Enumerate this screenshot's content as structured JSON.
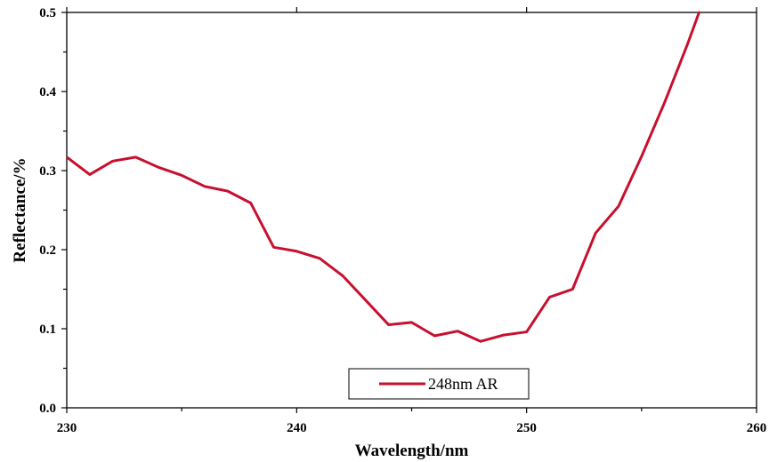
{
  "chart_data": {
    "type": "line",
    "xlabel": "Wavelength/nm",
    "ylabel": "Reflectance/%",
    "xlim": [
      230,
      260
    ],
    "ylim": [
      0.0,
      0.5
    ],
    "x_ticks": [
      230,
      240,
      250,
      260
    ],
    "x_tick_labels": [
      "230",
      "240",
      "250",
      "260"
    ],
    "x_minor_ticks": [
      235,
      245,
      255
    ],
    "y_ticks": [
      0.0,
      0.1,
      0.2,
      0.3,
      0.4,
      0.5
    ],
    "y_tick_labels": [
      "0.0",
      "0.1",
      "0.2",
      "0.3",
      "0.4",
      "0.5"
    ],
    "y_minor_ticks": [
      0.05,
      0.15,
      0.25,
      0.35,
      0.45
    ],
    "grid": false,
    "legend": {
      "placement": "bottom-center"
    },
    "series": [
      {
        "name": "248nm AR",
        "color": "#c8102e",
        "x": [
          230,
          231,
          232,
          233,
          234,
          235,
          236,
          237,
          238,
          239,
          240,
          241,
          242,
          243,
          244,
          245,
          246,
          247,
          248,
          249,
          250,
          251,
          252,
          253,
          254,
          255,
          256,
          257,
          257.5
        ],
        "y": [
          0.317,
          0.295,
          0.312,
          0.317,
          0.304,
          0.294,
          0.28,
          0.274,
          0.259,
          0.203,
          0.198,
          0.189,
          0.167,
          0.136,
          0.105,
          0.108,
          0.091,
          0.097,
          0.084,
          0.092,
          0.096,
          0.14,
          0.15,
          0.221,
          0.255,
          0.318,
          0.386,
          0.46,
          0.5
        ]
      }
    ]
  }
}
